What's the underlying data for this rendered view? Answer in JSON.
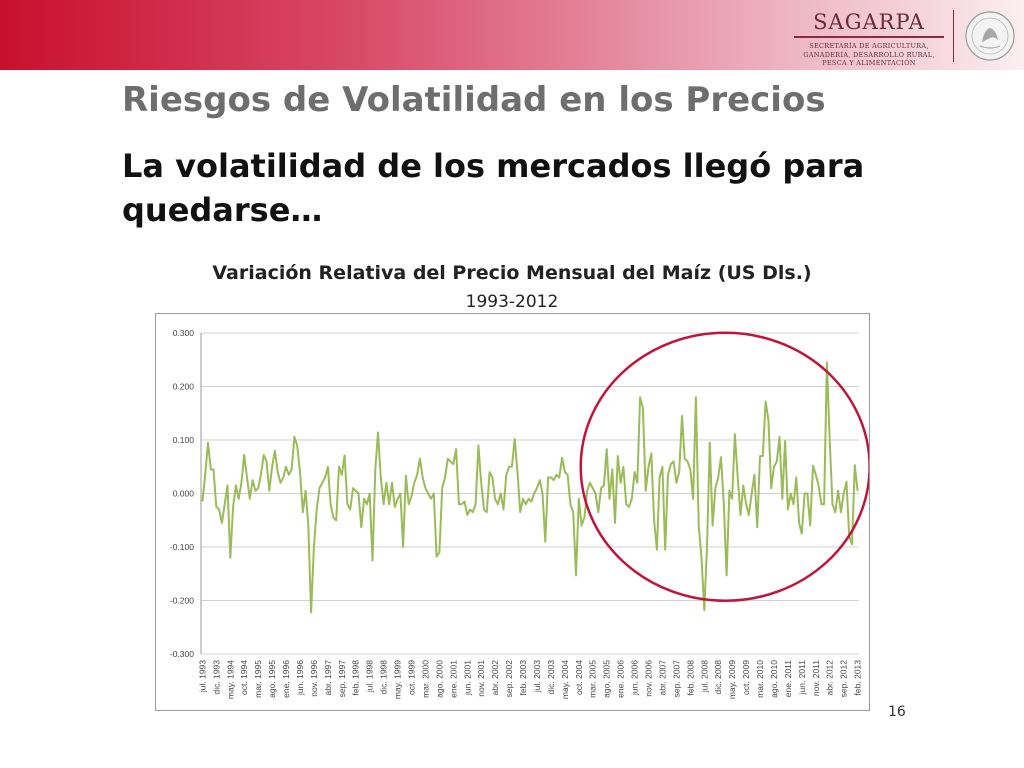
{
  "slide": {
    "title": "Riesgos de Volatilidad en los Precios",
    "subtitle": "La volatilidad de los mercados llegó para quedarse…",
    "page_number": "16"
  },
  "logo": {
    "name": "SAGARPA",
    "subtitle_lines": [
      "SECRETARÍA DE AGRICULTURA,",
      "GANADERÍA, DESARROLLO RURAL,",
      "PESCA Y ALIMENTACIÓN"
    ],
    "seal_icon": "mexican-coat-of-arms-seal-icon"
  },
  "colors": {
    "banner_red": "#c8102e",
    "line": "#9bbb59",
    "circle": "#c0143c",
    "grid": "#d0d0d0"
  },
  "chart_data": {
    "type": "line",
    "title": "Variación Relativa del Precio Mensual del Maíz (US Dls.)",
    "subtitle": "1993-2012",
    "xlabel": "",
    "ylabel": "",
    "ylim": [
      -0.3,
      0.3
    ],
    "yticks": [
      "0.300",
      "0.200",
      "0.100",
      "0.000",
      "-0.100",
      "-0.200",
      "-0.300"
    ],
    "grid": true,
    "legend": "none",
    "highlight": {
      "shape": "circle",
      "from": "mar. 2005",
      "to": "feb. 2013"
    },
    "xtick_labels": [
      "jul. 1993",
      "dic. 1993",
      "may. 1994",
      "oct. 1994",
      "mar. 1995",
      "ago. 1995",
      "ene. 1996",
      "jun. 1996",
      "nov. 1996",
      "abr. 1997",
      "sep. 1997",
      "feb. 1998",
      "jul. 1998",
      "dic. 1998",
      "may. 1999",
      "oct. 1999",
      "mar. 2000",
      "ago. 2000",
      "ene. 2001",
      "jun. 2001",
      "nov. 2001",
      "abr. 2002",
      "sep. 2002",
      "feb. 2003",
      "jul. 2003",
      "dic. 2003",
      "may. 2004",
      "oct. 2004",
      "mar. 2005",
      "ago. 2005",
      "ene. 2006",
      "jun. 2006",
      "nov. 2006",
      "abr. 2007",
      "sep. 2007",
      "feb. 2008",
      "jul. 2008",
      "dic. 2008",
      "may. 2009",
      "oct. 2009",
      "mar. 2010",
      "ago. 2010",
      "ene. 2011",
      "jun. 2011",
      "nov. 2011",
      "abr. 2012",
      "sep. 2012",
      "feb. 2013"
    ],
    "x_start": "jul. 1993",
    "x_step": "1 month",
    "series": [
      {
        "values": [
          -0.015,
          0.035,
          0.095,
          0.045,
          0.045,
          -0.025,
          -0.03,
          -0.055,
          -0.02,
          0.015,
          -0.12,
          -0.025,
          0.015,
          -0.01,
          0.02,
          0.072,
          0.03,
          -0.01,
          0.025,
          0.005,
          0.01,
          0.035,
          0.072,
          0.06,
          0.005,
          0.05,
          0.08,
          0.04,
          0.02,
          0.03,
          0.05,
          0.035,
          0.045,
          0.106,
          0.09,
          0.04,
          -0.035,
          0.005,
          -0.06,
          -0.222,
          -0.1,
          -0.03,
          0.01,
          0.02,
          0.03,
          0.05,
          -0.02,
          -0.045,
          -0.05,
          0.05,
          0.035,
          0.071,
          -0.02,
          -0.03,
          0.01,
          0.005,
          0.0,
          -0.063,
          -0.01,
          -0.02,
          0.0,
          -0.125,
          0.045,
          0.114,
          0.03,
          -0.02,
          0.02,
          -0.02,
          0.02,
          -0.025,
          -0.01,
          0.0,
          -0.1,
          0.033,
          -0.02,
          -0.005,
          0.02,
          0.035,
          0.065,
          0.03,
          0.01,
          0.0,
          -0.01,
          0.0,
          -0.118,
          -0.11,
          0.01,
          0.03,
          0.065,
          0.06,
          0.055,
          0.083,
          -0.02,
          -0.02,
          -0.015,
          -0.04,
          -0.03,
          -0.035,
          -0.02,
          0.09,
          0.02,
          -0.03,
          -0.035,
          0.04,
          0.03,
          -0.01,
          -0.02,
          0.0,
          -0.03,
          0.035,
          0.05,
          0.05,
          0.102,
          0.04,
          -0.035,
          -0.01,
          -0.02,
          -0.01,
          -0.015,
          0.0,
          0.01,
          0.025,
          0.0,
          -0.09,
          0.03,
          0.03,
          0.025,
          0.035,
          0.03,
          0.067,
          0.04,
          0.035,
          -0.02,
          -0.035,
          -0.153,
          -0.01,
          -0.06,
          -0.045,
          0.005,
          0.02,
          0.01,
          0.0,
          -0.035,
          0.01,
          0.015,
          0.083,
          -0.01,
          0.045,
          -0.055,
          0.07,
          0.02,
          0.05,
          -0.02,
          -0.025,
          -0.01,
          0.04,
          0.02,
          0.18,
          0.16,
          0.005,
          0.05,
          0.075,
          -0.05,
          -0.105,
          0.03,
          0.05,
          -0.105,
          0.035,
          0.055,
          0.06,
          0.02,
          0.04,
          0.145,
          0.065,
          0.06,
          0.045,
          -0.01,
          0.18,
          -0.06,
          -0.12,
          -0.218,
          -0.1,
          0.095,
          -0.06,
          0.01,
          0.03,
          0.068,
          -0.02,
          -0.153,
          0.005,
          -0.01,
          0.111,
          0.03,
          -0.04,
          0.015,
          -0.02,
          -0.04,
          0.0,
          0.035,
          -0.063,
          0.07,
          0.07,
          0.172,
          0.138,
          0.01,
          0.05,
          0.06,
          0.106,
          -0.01,
          0.098,
          -0.03,
          0.0,
          -0.02,
          0.03,
          -0.055,
          -0.075,
          0.0,
          0.0,
          -0.06,
          0.052,
          0.035,
          0.015,
          -0.02,
          -0.02,
          0.245,
          0.1,
          -0.02,
          -0.035,
          0.005,
          -0.035,
          0.0,
          0.022,
          -0.08,
          -0.095,
          0.053,
          0.005
        ]
      }
    ]
  }
}
